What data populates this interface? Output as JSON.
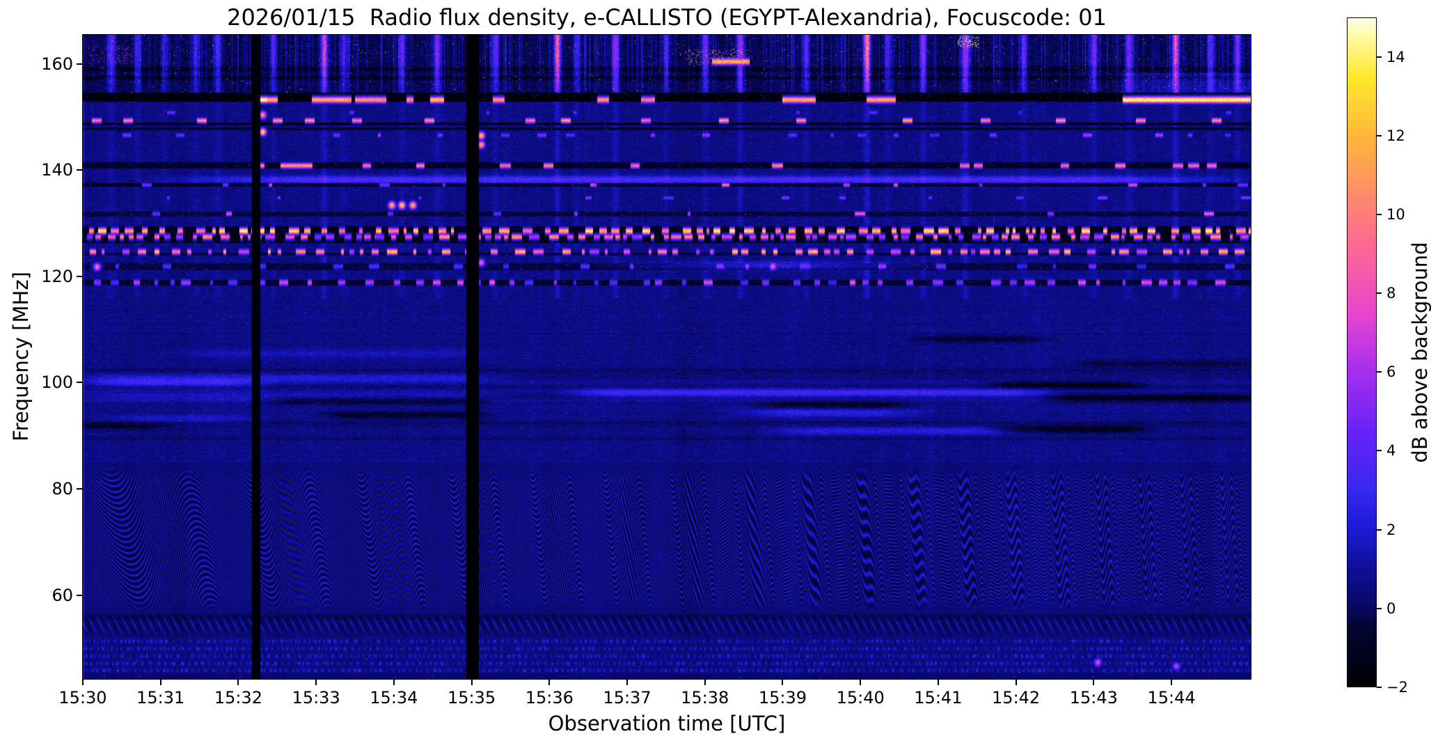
{
  "chart_data": {
    "type": "heatmap",
    "title": "2026/01/15  Radio flux density, e-CALLISTO (EGYPT-Alexandria), Focuscode: 01",
    "xlabel": "Observation time [UTC]",
    "ylabel": "Frequency [MHz]",
    "legend_position": "right-colorbar",
    "grid": false,
    "colorbar": {
      "label": "dB above background",
      "vmin": -2,
      "vmax": 15,
      "tick_values": [
        -2,
        0,
        2,
        4,
        6,
        8,
        10,
        12,
        14
      ],
      "tick_labels": [
        "−2",
        "0",
        "2",
        "4",
        "6",
        "8",
        "10",
        "12",
        "14"
      ]
    },
    "x_axis": {
      "start_minutes": 0,
      "end_minutes": 15.02,
      "tick_interval_minutes": 1,
      "tick_labels": [
        "15:30",
        "15:31",
        "15:32",
        "15:33",
        "15:34",
        "15:35",
        "15:36",
        "15:37",
        "15:38",
        "15:39",
        "15:40",
        "15:41",
        "15:42",
        "15:43",
        "15:44"
      ]
    },
    "y_axis": {
      "min_mhz": 44.2,
      "max_mhz": 165.5,
      "tick_values": [
        160,
        140,
        120,
        100,
        80,
        60
      ],
      "tick_labels": [
        "160",
        "140",
        "120",
        "100",
        "80",
        "60"
      ]
    },
    "colormap_stops": [
      [
        -2,
        0,
        0,
        0
      ],
      [
        -0.5,
        4,
        4,
        50
      ],
      [
        0,
        8,
        8,
        95
      ],
      [
        1,
        15,
        15,
        150
      ],
      [
        2,
        28,
        26,
        210
      ],
      [
        3,
        55,
        40,
        240
      ],
      [
        4.5,
        105,
        35,
        248
      ],
      [
        6,
        165,
        45,
        238
      ],
      [
        7.5,
        230,
        70,
        205
      ],
      [
        9,
        252,
        100,
        155
      ],
      [
        10.5,
        255,
        138,
        105
      ],
      [
        12,
        255,
        183,
        58
      ],
      [
        13.5,
        255,
        232,
        45
      ],
      [
        14.5,
        255,
        250,
        160
      ],
      [
        15,
        255,
        255,
        235
      ]
    ],
    "render_seed": 20260115,
    "features": {
      "dropouts": [
        {
          "t0": 2.17,
          "t1": 2.28
        },
        {
          "t0": 4.93,
          "t1": 5.09
        }
      ],
      "top_band": {
        "f_min": 154.6,
        "dark_rows": [
          159.0,
          157.4
        ],
        "streaks": [
          {
            "t": 0.36,
            "a": 5
          },
          {
            "t": 0.7,
            "a": 4
          },
          {
            "t": 1.05,
            "a": 3
          },
          {
            "t": 1.45,
            "a": 4
          },
          {
            "t": 1.73,
            "a": 5
          },
          {
            "t": 2.45,
            "a": 4
          },
          {
            "t": 3.1,
            "a": 9,
            "pink": true
          },
          {
            "t": 3.35,
            "a": 4
          },
          {
            "t": 4.1,
            "a": 5
          },
          {
            "t": 4.55,
            "a": 6
          },
          {
            "t": 5.3,
            "a": 5
          },
          {
            "t": 6.1,
            "a": 10,
            "pink": true
          },
          {
            "t": 6.35,
            "a": 4
          },
          {
            "t": 6.85,
            "a": 7
          },
          {
            "t": 7.5,
            "a": 4
          },
          {
            "t": 8.0,
            "a": 6
          },
          {
            "t": 8.45,
            "a": 8
          },
          {
            "t": 9.3,
            "a": 5
          },
          {
            "t": 10.08,
            "a": 11,
            "pink": true
          },
          {
            "t": 10.35,
            "a": 4
          },
          {
            "t": 10.8,
            "a": 7
          },
          {
            "t": 11.35,
            "a": 9
          },
          {
            "t": 12.1,
            "a": 5
          },
          {
            "t": 13.0,
            "a": 6
          },
          {
            "t": 13.45,
            "a": 6
          },
          {
            "t": 14.05,
            "a": 10,
            "pink": true
          },
          {
            "t": 14.5,
            "a": 5
          },
          {
            "t": 14.85,
            "a": 6
          }
        ],
        "speck_boxes": [
          {
            "t0": 7.75,
            "t1": 8.55,
            "f0": 159.8,
            "f1": 162.8,
            "p": 0.1,
            "vmin": 9,
            "vmax": 14
          },
          {
            "t0": 11.25,
            "t1": 11.52,
            "f0": 163.2,
            "f1": 165.3,
            "p": 0.22,
            "vmin": 11,
            "vmax": 15
          },
          {
            "t0": 0.05,
            "t1": 0.65,
            "f0": 160.0,
            "f1": 163.5,
            "p": 0.05,
            "vmin": 5,
            "vmax": 9
          }
        ],
        "bright_boxes": [
          {
            "t0": 13.35,
            "t1": 15.02,
            "f0": 154.6,
            "f1": 158.3,
            "add": 1.2
          }
        ],
        "short_line": {
          "f": 160.45,
          "t0": 8.1,
          "t1": 8.57,
          "v": 12
        }
      },
      "line_153": {
        "f": 153.25,
        "segments": [
          {
            "t0": 2.18,
            "t1": 2.5,
            "v": 12
          },
          {
            "t0": 2.27,
            "t1": 2.37,
            "v": 15
          },
          {
            "t0": 2.95,
            "t1": 3.45,
            "v": 12
          },
          {
            "t0": 3.5,
            "t1": 3.9,
            "v": 11
          },
          {
            "t0": 4.17,
            "t1": 4.25,
            "v": 11
          },
          {
            "t0": 4.47,
            "t1": 4.64,
            "v": 13
          },
          {
            "t0": 5.28,
            "t1": 5.42,
            "v": 11
          },
          {
            "t0": 6.62,
            "t1": 6.76,
            "v": 11
          },
          {
            "t0": 7.18,
            "t1": 7.35,
            "v": 10
          },
          {
            "t0": 9.0,
            "t1": 9.42,
            "v": 12
          },
          {
            "t0": 10.08,
            "t1": 10.45,
            "v": 12
          },
          {
            "t0": 13.38,
            "t1": 15.02,
            "v": 15
          }
        ]
      },
      "dashes_149": {
        "f": 149.35,
        "len": 0.13,
        "vmin": 9,
        "vmax": 12,
        "times": [
          0.12,
          0.52,
          1.47,
          2.45,
          2.86,
          3.47,
          4.4,
          5.7,
          6.15,
          7.18,
          8.19,
          9.18,
          10.55,
          11.55,
          12.52,
          13.55,
          14.52
        ]
      },
      "line_141": {
        "f": 140.85,
        "segments": [
          {
            "t0": 2.23,
            "t1": 2.33,
            "v": 10
          },
          {
            "t0": 2.55,
            "t1": 2.95,
            "v": 11
          },
          {
            "t0": 3.6,
            "t1": 3.7,
            "v": 9
          },
          {
            "t0": 4.29,
            "t1": 4.39,
            "v": 10
          },
          {
            "t0": 5.37,
            "t1": 5.5,
            "v": 9
          },
          {
            "t0": 5.93,
            "t1": 6.05,
            "v": 10
          },
          {
            "t0": 7.05,
            "t1": 7.16,
            "v": 9
          },
          {
            "t0": 8.87,
            "t1": 9.0,
            "v": 10
          },
          {
            "t0": 11.28,
            "t1": 11.4,
            "v": 9
          },
          {
            "t0": 11.46,
            "t1": 11.57,
            "v": 9
          },
          {
            "t0": 12.58,
            "t1": 12.68,
            "v": 9
          },
          {
            "t0": 13.28,
            "t1": 13.4,
            "v": 10
          },
          {
            "t0": 14.02,
            "t1": 14.15,
            "v": 9
          },
          {
            "t0": 14.22,
            "t1": 14.35,
            "v": 9
          },
          {
            "t0": 14.46,
            "t1": 14.58,
            "v": 9
          }
        ]
      },
      "smear_lines": [
        {
          "f": 138.2,
          "t0": 0.9,
          "t1": 15.02,
          "v": 3.0
        },
        {
          "f": 122.05,
          "t0": 6.8,
          "t1": 11.0,
          "v": 2.6
        }
      ],
      "rfi_dash_rows": [
        {
          "f": 128.55,
          "sigma": 0.42,
          "density": 0.4,
          "vmin": 9,
          "vmax": 15,
          "seed": 11
        },
        {
          "f": 127.45,
          "sigma": 0.38,
          "density": 0.5,
          "vmin": 5,
          "vmax": 11,
          "seed": 12
        },
        {
          "f": 124.65,
          "sigma": 0.38,
          "density": 0.38,
          "vmin": 6,
          "vmax": 13,
          "seed": 13
        },
        {
          "f": 118.85,
          "sigma": 0.4,
          "density": 0.28,
          "vmin": 3,
          "vmax": 9,
          "seed": 14
        },
        {
          "f": 131.8,
          "sigma": 0.3,
          "density": 0.06,
          "vmin": 4,
          "vmax": 9,
          "seed": 15
        },
        {
          "f": 150.85,
          "sigma": 0.28,
          "density": 0.05,
          "vmin": 2,
          "vmax": 5,
          "seed": 16
        },
        {
          "f": 146.6,
          "sigma": 0.3,
          "density": 0.1,
          "vmin": 3,
          "vmax": 7,
          "seed": 17
        },
        {
          "f": 137.2,
          "sigma": 0.25,
          "density": 0.07,
          "vmin": 4,
          "vmax": 9,
          "seed": 18
        },
        {
          "f": 134.8,
          "sigma": 0.25,
          "density": 0.05,
          "vmin": 3,
          "vmax": 6,
          "seed": 19
        },
        {
          "f": 121.9,
          "sigma": 0.35,
          "density": 0.12,
          "vmin": 2.5,
          "vmax": 5,
          "seed": 20
        }
      ],
      "dark_bands": [
        {
          "f0": 148.4,
          "f1": 149.0,
          "level": -1.25
        },
        {
          "f0": 147.5,
          "f1": 148.1,
          "level": -0.65
        },
        {
          "f0": 136.9,
          "f1": 137.6,
          "level": -1.35
        },
        {
          "f0": 131.3,
          "f1": 132.2,
          "level": -0.5
        },
        {
          "f0": 123.9,
          "f1": 124.4,
          "level": -0.55
        },
        {
          "f0": 121.2,
          "f1": 122.5,
          "level": -0.5
        },
        {
          "f0": 118.3,
          "f1": 119.3,
          "level": -0.8
        },
        {
          "f0": 126.3,
          "f1": 129.4,
          "level": -1.35
        },
        {
          "f0": 152.9,
          "f1": 154.6,
          "level": -1.9
        },
        {
          "f0": 140.3,
          "f1": 141.5,
          "level": -1.0
        }
      ],
      "bright_marks": [
        {
          "t": 2.31,
          "f": 150.4,
          "v": 11
        },
        {
          "t": 2.31,
          "f": 147.2,
          "v": 14
        },
        {
          "t": 5.12,
          "f": 146.5,
          "v": 13
        },
        {
          "t": 5.12,
          "f": 144.8,
          "v": 12
        },
        {
          "t": 5.12,
          "f": 122.6,
          "v": 9
        },
        {
          "t": 3.97,
          "f": 133.4,
          "v": 13
        },
        {
          "t": 4.1,
          "f": 133.4,
          "v": 14
        },
        {
          "t": 4.24,
          "f": 133.4,
          "v": 13
        },
        {
          "t": 0.18,
          "f": 121.8,
          "v": 10
        },
        {
          "t": 8.87,
          "f": 121.9,
          "v": 9
        },
        {
          "t": 13.05,
          "f": 47.3,
          "v": 8
        },
        {
          "t": 14.06,
          "f": 46.6,
          "v": 7
        }
      ],
      "mid_region": {
        "f0": 85,
        "f1": 115.8,
        "stripe_band": {
          "f0": 96,
          "f1": 101.5,
          "period": 1.85,
          "amp": 0.28
        },
        "dark_rows": [
          102.3,
          92.3,
          89.5
        ],
        "bright_smears": [
          {
            "f": 100.9,
            "t0": 0,
            "t1": 5.3,
            "v": 1.6
          },
          {
            "f": 97.4,
            "t0": 0,
            "t1": 5.3,
            "v": 1.3
          },
          {
            "f": 99.9,
            "t0": 0.1,
            "t1": 2.3,
            "v": 2.0
          },
          {
            "f": 98.05,
            "t0": 6.3,
            "t1": 12.4,
            "v": 2.6
          },
          {
            "f": 94.35,
            "t0": 8.5,
            "t1": 10.7,
            "v": 1.9
          },
          {
            "f": 90.9,
            "t0": 8.9,
            "t1": 12.1,
            "v": 1.7
          },
          {
            "f": 105.5,
            "t0": 1.2,
            "t1": 5.2,
            "v": 0.9
          },
          {
            "f": 93.2,
            "t0": 0.3,
            "t1": 2.2,
            "v": 1.2
          }
        ],
        "dark_smears": [
          {
            "f": 96.6,
            "t0": 2.5,
            "t1": 5.1,
            "v": 1.8
          },
          {
            "f": 93.9,
            "t0": 3.2,
            "t1": 5.1,
            "v": 1.5
          },
          {
            "f": 95.8,
            "t0": 8.8,
            "t1": 10.5,
            "v": 1.6
          },
          {
            "f": 99.6,
            "t0": 11.8,
            "t1": 13.5,
            "v": 1.9
          },
          {
            "f": 97.0,
            "t0": 12.5,
            "t1": 15.02,
            "v": 1.9
          },
          {
            "f": 91.2,
            "t0": 11.8,
            "t1": 13.6,
            "v": 1.8
          },
          {
            "f": 108.2,
            "t0": 10.8,
            "t1": 12.3,
            "v": 1.3
          },
          {
            "f": 103.6,
            "t0": 12.8,
            "t1": 15.02,
            "v": 1.0
          },
          {
            "f": 91.8,
            "t0": 0,
            "t1": 1.0,
            "v": 1.2
          }
        ]
      },
      "wave_region": {
        "f0": 56.5,
        "f1": 84.5,
        "stripe_mhz": 1.05,
        "disp_mhz": 13,
        "chirp": [
          0.42,
          0.052
        ]
      },
      "bead_row": {
        "f": 54.3,
        "period_min": 0.108
      },
      "dot_rows": {
        "freqs": [
          51.3,
          49.9,
          48.5,
          47.1,
          45.8
        ],
        "density": 0.45,
        "vmin": 1.5,
        "vmax": 2.8
      }
    }
  }
}
